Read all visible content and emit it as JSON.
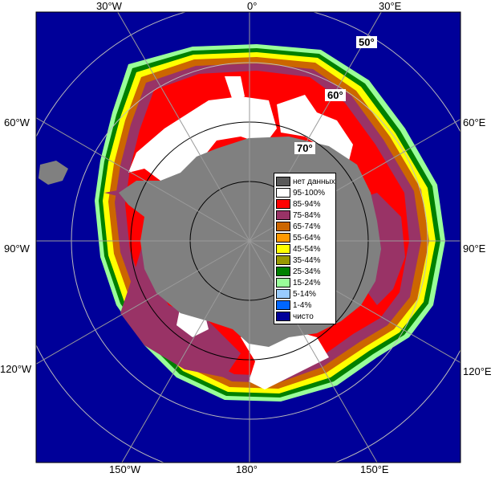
{
  "longitude_labels": {
    "top_30w": "30°W",
    "top_0": "0°",
    "top_30e": "30°E",
    "left_60w": "60°W",
    "left_90w": "90°W",
    "left_120w": "120°W",
    "right_60e": "60°E",
    "right_90e": "90°E",
    "right_120e": "120°E",
    "bottom_150w": "150°W",
    "bottom_180": "180°",
    "bottom_150e": "150°E"
  },
  "latitude_labels": {
    "lat50": "50°",
    "lat60": "60°",
    "lat70": "70°"
  },
  "legend": [
    {
      "label": "нет данных",
      "color": "#595959"
    },
    {
      "label": "95-100%",
      "color": "#ffffff"
    },
    {
      "label": "85-94%",
      "color": "#ff0000"
    },
    {
      "label": "75-84%",
      "color": "#993366"
    },
    {
      "label": "65-74%",
      "color": "#cc6600"
    },
    {
      "label": "55-64%",
      "color": "#ff9900"
    },
    {
      "label": "45-54%",
      "color": "#ffff00"
    },
    {
      "label": "35-44%",
      "color": "#999900"
    },
    {
      "label": "25-34%",
      "color": "#008000"
    },
    {
      "label": "15-24%",
      "color": "#99ff99"
    },
    {
      "label": "5-14%",
      "color": "#99ccff"
    },
    {
      "label": "1-4%",
      "color": "#0066ff"
    },
    {
      "label": "чисто",
      "color": "#000099"
    }
  ],
  "colors": {
    "ocean": "#000099",
    "land": "#808080",
    "grid": "#a0a0a0"
  }
}
